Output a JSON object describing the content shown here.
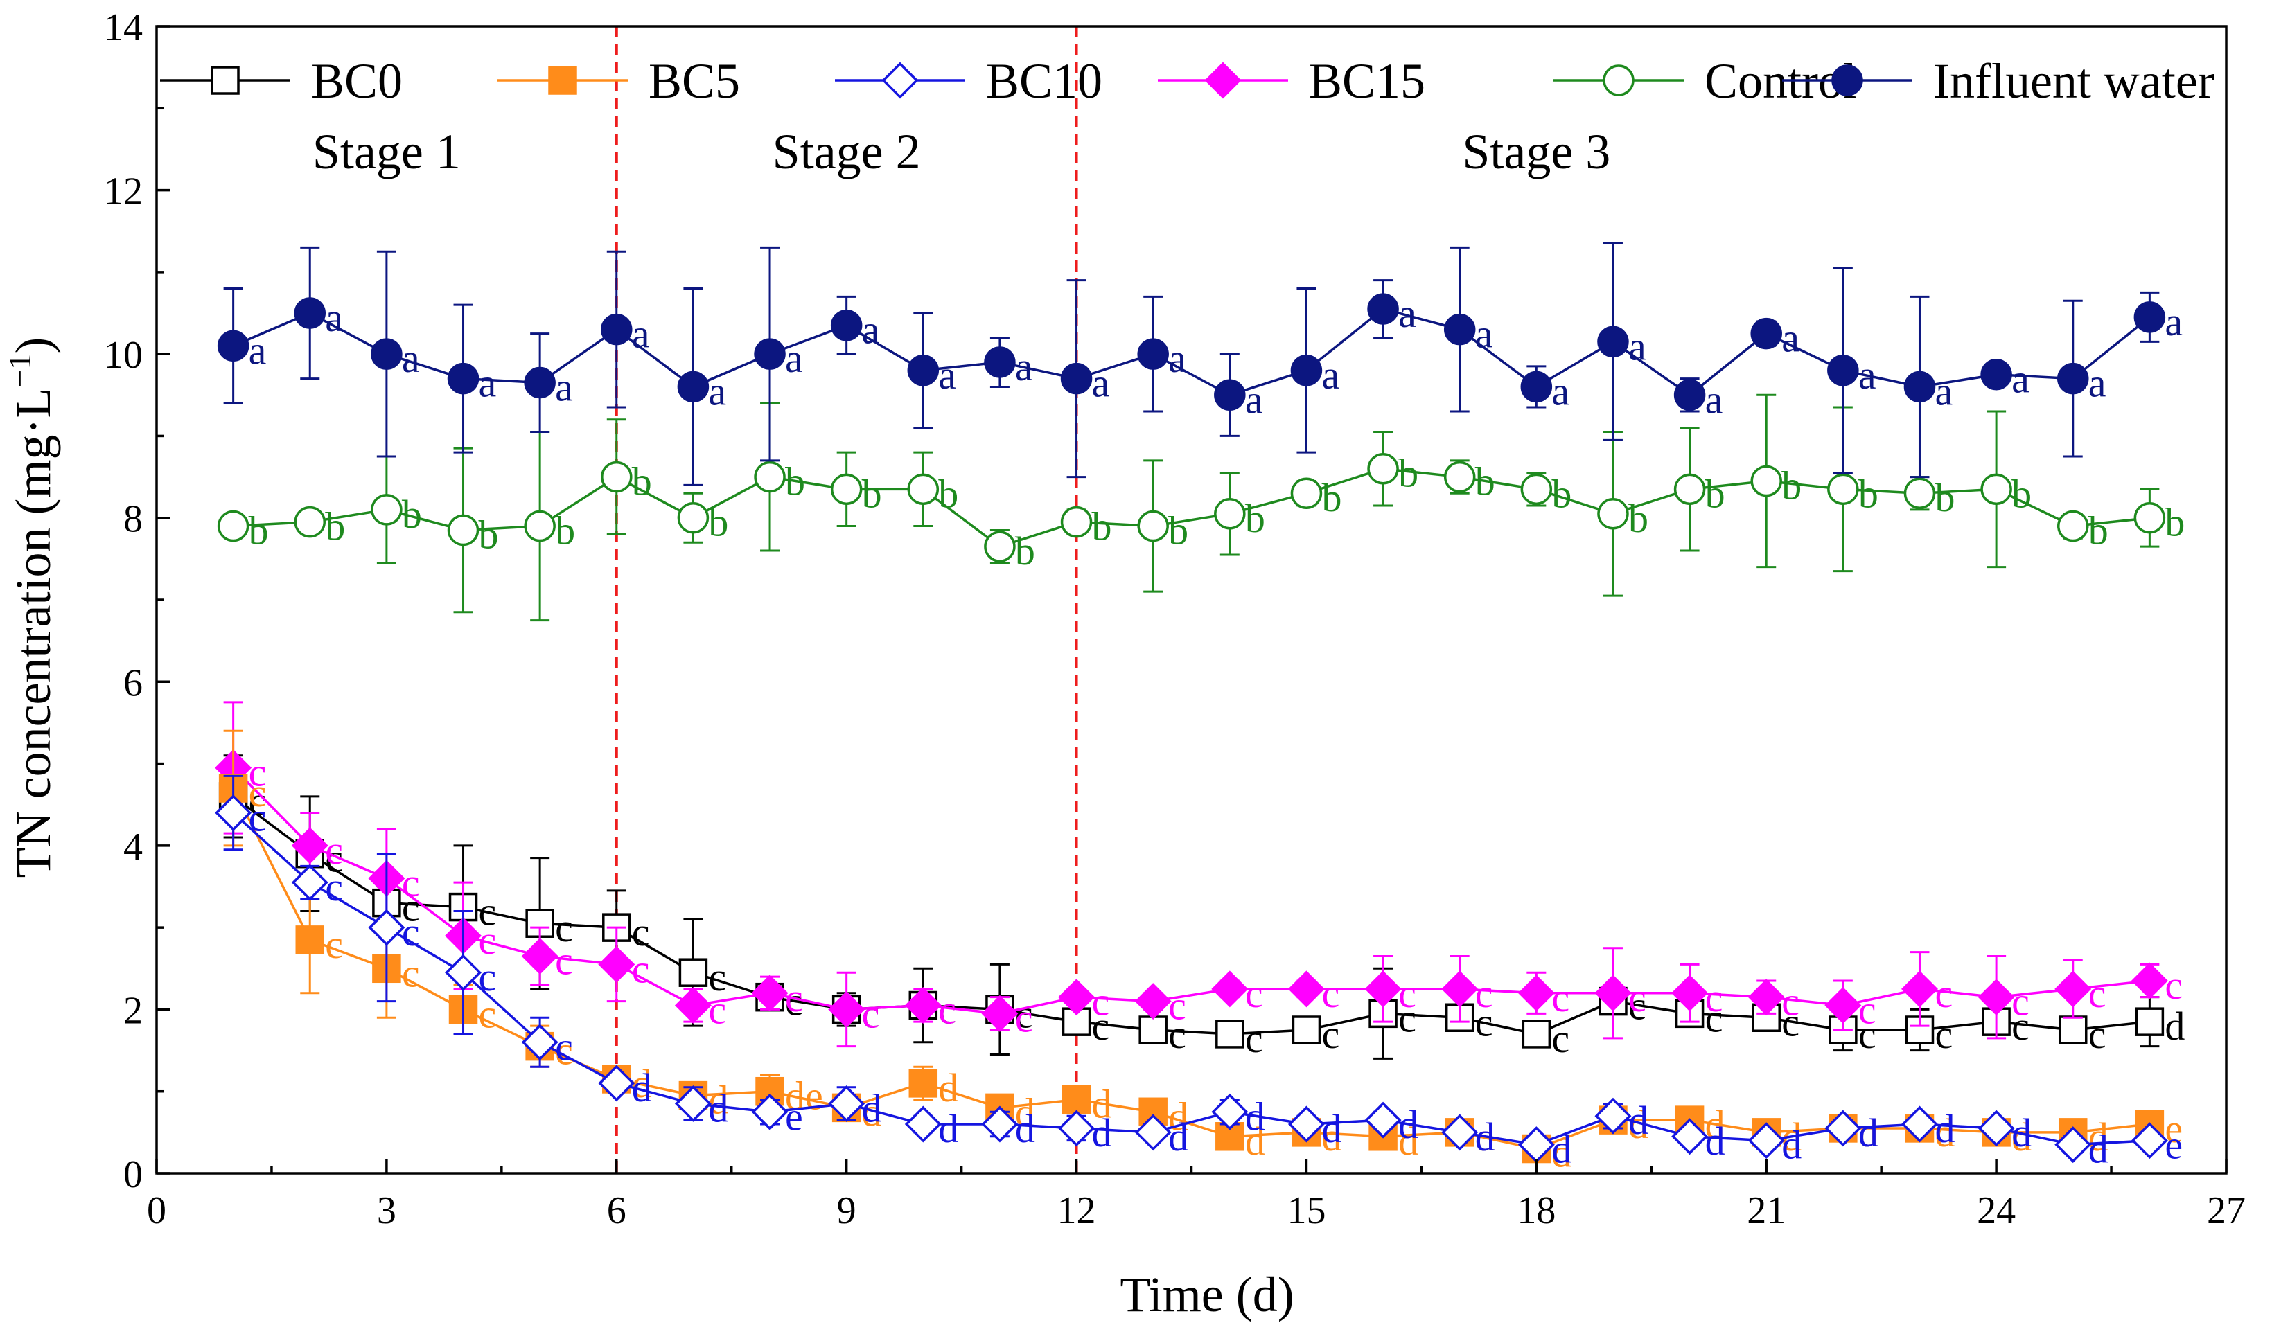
{
  "chart_data": {
    "type": "line",
    "title": "",
    "xlabel": "Time (d)",
    "ylabel": "TN concentration (mg·L",
    "ylabel_sup": "−1",
    "ylabel_close": ")",
    "xlim": [
      0,
      27
    ],
    "ylim": [
      0,
      14
    ],
    "xticks": [
      0,
      3,
      6,
      9,
      12,
      15,
      18,
      21,
      24,
      27
    ],
    "yticks": [
      0,
      2,
      4,
      6,
      8,
      10,
      12,
      14
    ],
    "grid": false,
    "legend_position": "top",
    "stage_boundaries": [
      6,
      12
    ],
    "stage_labels": [
      {
        "label": "Stage 1",
        "x": 3
      },
      {
        "label": "Stage 2",
        "x": 9
      },
      {
        "label": "Stage 3",
        "x": 18
      }
    ],
    "x": [
      1,
      2,
      3,
      4,
      5,
      6,
      7,
      8,
      9,
      10,
      11,
      12,
      13,
      14,
      15,
      16,
      17,
      18,
      19,
      20,
      21,
      22,
      23,
      24,
      25,
      26
    ],
    "series": [
      {
        "name": "Control",
        "color": "#1e8a1e",
        "marker": "circle-open",
        "values": [
          7.9,
          7.95,
          8.1,
          7.85,
          7.9,
          8.5,
          8.0,
          8.5,
          8.35,
          8.35,
          7.65,
          7.95,
          7.9,
          8.05,
          8.3,
          8.6,
          8.5,
          8.35,
          8.05,
          8.35,
          8.45,
          8.35,
          8.3,
          8.35,
          7.9,
          8.0
        ],
        "errors": [
          0.1,
          0.1,
          0.65,
          1.0,
          1.15,
          0.7,
          0.3,
          0.9,
          0.45,
          0.45,
          0.2,
          0.15,
          0.8,
          0.5,
          0.15,
          0.45,
          0.2,
          0.2,
          1.0,
          0.75,
          1.05,
          1.0,
          0.2,
          0.95,
          0.15,
          0.35
        ],
        "letters": [
          "b",
          "b",
          "b",
          "b",
          "b",
          "b",
          "b",
          "b",
          "b",
          "b",
          "b",
          "b",
          "b",
          "b",
          "b",
          "b",
          "b",
          "b",
          "b",
          "b",
          "b",
          "b",
          "b",
          "b",
          "b",
          "b"
        ]
      },
      {
        "name": "BC0",
        "color": "#000000",
        "marker": "square-open",
        "values": [
          4.6,
          3.9,
          3.3,
          3.25,
          3.05,
          3.0,
          2.45,
          2.15,
          2.0,
          2.05,
          2.0,
          1.85,
          1.75,
          1.7,
          1.75,
          1.95,
          1.9,
          1.7,
          2.1,
          1.95,
          1.9,
          1.75,
          1.75,
          1.85,
          1.75,
          1.85
        ],
        "errors": [
          0.5,
          0.7,
          0.2,
          0.75,
          0.8,
          0.45,
          0.65,
          0.15,
          0.2,
          0.45,
          0.55,
          0.1,
          0.1,
          0.05,
          0.15,
          0.55,
          0.15,
          0.1,
          0.15,
          0.1,
          0.1,
          0.25,
          0.25,
          0.1,
          0.1,
          0.3
        ],
        "letters": [
          "c",
          "c",
          "c",
          "c",
          "c",
          "c",
          "c",
          "c",
          "c",
          "c",
          "c",
          "c",
          "c",
          "c",
          "c",
          "c",
          "c",
          "c",
          "c",
          "c",
          "c",
          "c",
          "c",
          "c",
          "c",
          "d"
        ]
      },
      {
        "name": "BC15",
        "color": "#ff00ff",
        "marker": "diamond-filled",
        "values": [
          4.95,
          4.0,
          3.6,
          2.9,
          2.65,
          2.55,
          2.05,
          2.2,
          2.0,
          2.05,
          1.95,
          2.15,
          2.1,
          2.25,
          2.25,
          2.25,
          2.25,
          2.2,
          2.2,
          2.2,
          2.15,
          2.05,
          2.25,
          2.15,
          2.25,
          2.35
        ],
        "errors": [
          0.8,
          0.4,
          0.6,
          0.65,
          0.35,
          0.45,
          0.2,
          0.2,
          0.45,
          0.2,
          0.2,
          0.1,
          0.1,
          0.1,
          0.1,
          0.4,
          0.4,
          0.25,
          0.55,
          0.35,
          0.2,
          0.3,
          0.45,
          0.5,
          0.35,
          0.2
        ],
        "letters": [
          "c",
          "c",
          "c",
          "c",
          "c",
          "c",
          "c",
          "c",
          "c",
          "c",
          "c",
          "c",
          "c",
          "c",
          "c",
          "c",
          "c",
          "c",
          "c",
          "c",
          "c",
          "c",
          "c",
          "c",
          "c",
          "c"
        ]
      },
      {
        "name": "BC5",
        "color": "#ff8c1a",
        "marker": "square-filled",
        "values": [
          4.7,
          2.85,
          2.5,
          2.0,
          1.55,
          1.15,
          0.95,
          1.0,
          0.8,
          1.1,
          0.8,
          0.9,
          0.75,
          0.45,
          0.5,
          0.45,
          0.5,
          0.3,
          0.65,
          0.65,
          0.5,
          0.55,
          0.55,
          0.5,
          0.5,
          0.6
        ],
        "errors": [
          0.7,
          0.65,
          0.6,
          0.3,
          0.25,
          0.1,
          0.15,
          0.2,
          0.15,
          0.2,
          0.15,
          0.1,
          0.1,
          0.05,
          0.05,
          0.05,
          0.1,
          0.05,
          0.15,
          0.1,
          0.1,
          0.1,
          0.1,
          0.1,
          0.05,
          0.1
        ],
        "letters": [
          "c",
          "c",
          "c",
          "c",
          "c",
          "d",
          "d",
          "de",
          "d",
          "d",
          "d",
          "d",
          "d",
          "d",
          "d",
          "d",
          "d",
          "d",
          "d",
          "d",
          "d",
          "d",
          "d",
          "d",
          "d",
          "e"
        ]
      },
      {
        "name": "BC10",
        "color": "#1515e0",
        "marker": "diamond-open",
        "values": [
          4.4,
          3.55,
          3.0,
          2.45,
          1.6,
          1.1,
          0.85,
          0.75,
          0.85,
          0.6,
          0.6,
          0.55,
          0.5,
          0.75,
          0.6,
          0.65,
          0.5,
          0.35,
          0.7,
          0.45,
          0.4,
          0.55,
          0.6,
          0.55,
          0.35,
          0.4
        ],
        "errors": [
          0.45,
          0.2,
          0.9,
          0.75,
          0.3,
          0.1,
          0.2,
          0.15,
          0.2,
          0.1,
          0.15,
          0.15,
          0.1,
          0.15,
          0.1,
          0.1,
          0.1,
          0.1,
          0.15,
          0.1,
          0.1,
          0.1,
          0.1,
          0.1,
          0.1,
          0.1
        ],
        "letters": [
          "c",
          "c",
          "c",
          "c",
          "c",
          "d",
          "d",
          "e",
          "d",
          "d",
          "d",
          "d",
          "d",
          "d",
          "d",
          "d",
          "d",
          "d",
          "d",
          "d",
          "d",
          "d",
          "d",
          "d",
          "d",
          "e"
        ]
      },
      {
        "name": "Influent water",
        "color": "#0c1680",
        "marker": "circle-filled",
        "values": [
          10.1,
          10.5,
          10.0,
          9.7,
          9.65,
          10.3,
          9.6,
          10.0,
          10.35,
          9.8,
          9.9,
          9.7,
          10.0,
          9.5,
          9.8,
          10.55,
          10.3,
          9.6,
          10.15,
          9.5,
          10.25,
          9.8,
          9.6,
          9.75,
          9.7,
          10.45
        ],
        "errors": [
          0.7,
          0.8,
          1.25,
          0.9,
          0.6,
          0.95,
          1.2,
          1.3,
          0.35,
          0.7,
          0.3,
          1.2,
          0.7,
          0.5,
          1.0,
          0.35,
          1.0,
          0.25,
          1.2,
          0.2,
          0.15,
          1.25,
          1.1,
          0.1,
          0.95,
          0.3
        ],
        "letters": [
          "a",
          "a",
          "a",
          "a",
          "a",
          "a",
          "a",
          "a",
          "a",
          "a",
          "a",
          "a",
          "a",
          "a",
          "a",
          "a",
          "a",
          "a",
          "a",
          "a",
          "a",
          "a",
          "a",
          "a",
          "a",
          "a"
        ]
      }
    ],
    "legend_order": [
      "BC0",
      "BC5",
      "BC10",
      "BC15",
      "Control",
      "Influent water"
    ]
  }
}
